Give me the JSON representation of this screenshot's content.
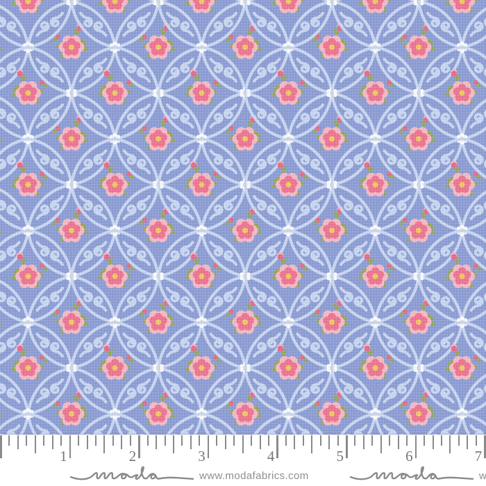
{
  "ruler": {
    "numbers": [
      "1",
      "2",
      "3",
      "4",
      "5",
      "6",
      "7"
    ]
  },
  "watermark": {
    "logo_text": "moda",
    "url": "www.modafabrics.com"
  },
  "colors": {
    "fabric_bg": "#8C9DD4",
    "scroll_blue": "#C9D7F1",
    "rose_pink_dark": "#EE7390",
    "rose_pink_light": "#F5B9C4",
    "rose_center_yellow": "#EFC85E",
    "leaf_green": "#98A84E",
    "bud_pink": "#E96984",
    "daisy_white": "#FBFCFE",
    "daisy_yellow": "#F0C75A",
    "ruler_bg": "#FFFFFF",
    "tick_gray": "#8A8A8A",
    "number_gray": "#757575",
    "logo_gray": "#8A8A8A",
    "url_gray": "#8D8D8D"
  }
}
